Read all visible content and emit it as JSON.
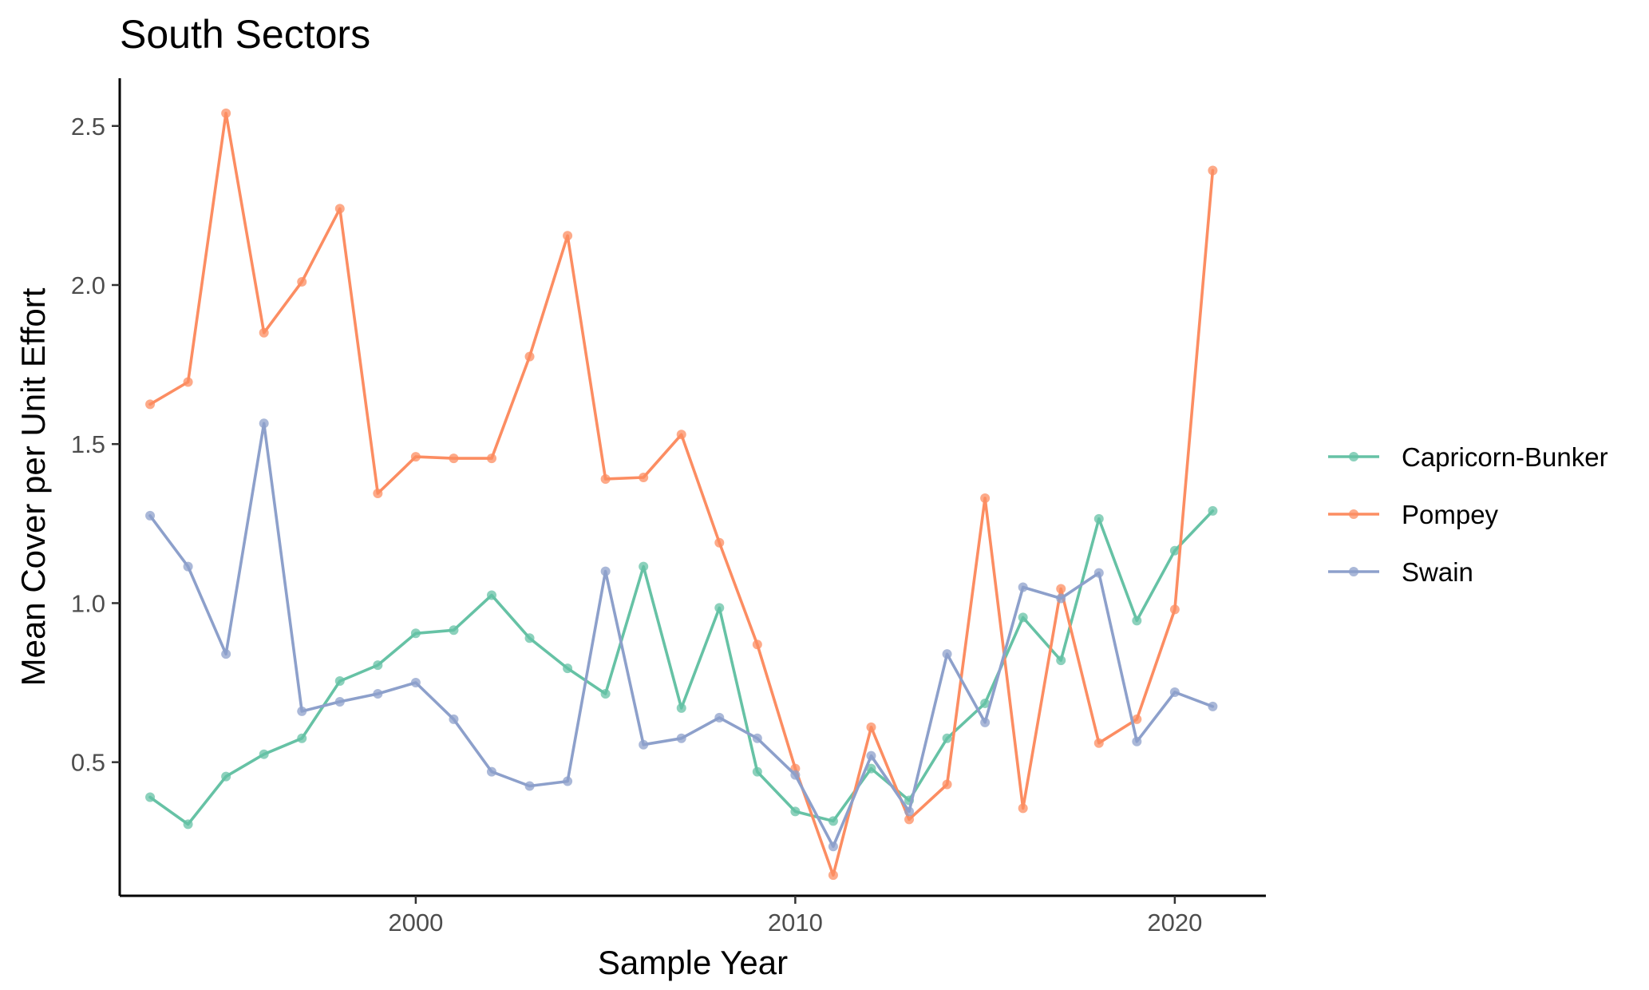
{
  "chart_data": {
    "type": "line",
    "title": "South Sectors",
    "xlabel": "Sample Year",
    "ylabel": "Mean Cover per Unit Effort",
    "xlim": [
      1992.2,
      2022.4
    ],
    "ylim": [
      0.08,
      2.65
    ],
    "x_ticks": [
      2000,
      2010,
      2020
    ],
    "x_tick_labels": [
      "2000",
      "2010",
      "2020"
    ],
    "y_ticks": [
      0.5,
      1.0,
      1.5,
      2.0,
      2.5
    ],
    "y_tick_labels": [
      "0.5",
      "1.0",
      "1.5",
      "2.0",
      "2.5"
    ],
    "grid": false,
    "legend_position": "right",
    "x": [
      1993,
      1994,
      1995,
      1996,
      1997,
      1998,
      1999,
      2000,
      2001,
      2002,
      2003,
      2004,
      2005,
      2006,
      2007,
      2008,
      2009,
      2010,
      2011,
      2012,
      2013,
      2014,
      2015,
      2016,
      2017,
      2018,
      2019,
      2020,
      2021
    ],
    "series": [
      {
        "name": "Capricorn-Bunker",
        "color": "#66c2a5",
        "values": [
          0.39,
          0.305,
          0.455,
          0.525,
          0.575,
          0.755,
          0.805,
          0.905,
          0.915,
          1.025,
          0.89,
          0.795,
          0.715,
          1.115,
          0.67,
          0.985,
          0.47,
          0.345,
          0.315,
          0.48,
          0.38,
          0.575,
          0.685,
          0.955,
          0.82,
          1.265,
          0.945,
          1.165,
          1.29
        ]
      },
      {
        "name": "Pompey",
        "color": "#fc8d62",
        "values": [
          1.625,
          1.695,
          2.54,
          1.85,
          2.01,
          2.24,
          1.345,
          1.46,
          1.455,
          1.455,
          1.775,
          2.155,
          1.39,
          1.395,
          1.53,
          1.19,
          0.87,
          0.48,
          0.145,
          0.61,
          0.32,
          0.43,
          1.33,
          0.355,
          1.045,
          0.56,
          0.635,
          0.98,
          2.36
        ]
      },
      {
        "name": "Swain",
        "color": "#8da0cb",
        "values": [
          1.275,
          1.115,
          0.84,
          1.565,
          0.66,
          0.69,
          0.715,
          0.75,
          0.635,
          0.47,
          0.425,
          0.44,
          1.1,
          0.555,
          0.575,
          0.64,
          0.575,
          0.46,
          0.235,
          0.52,
          0.345,
          0.84,
          0.625,
          1.05,
          1.015,
          1.095,
          0.565,
          0.72,
          0.675
        ]
      }
    ]
  }
}
